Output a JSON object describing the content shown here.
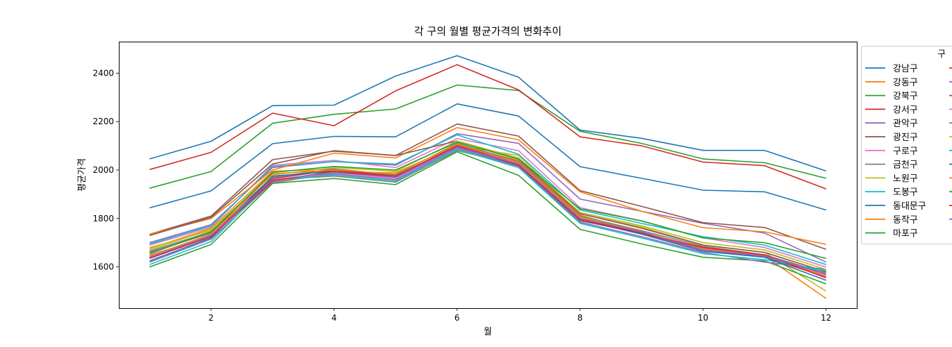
{
  "chart_data": {
    "type": "line",
    "title": "각 구의 월별 평균가격의 변화추이",
    "xlabel": "월",
    "ylabel": "평균가격",
    "xlim": [
      0.5,
      12.5
    ],
    "ylim": [
      1430,
      2530
    ],
    "xticks": [
      2,
      4,
      6,
      8,
      10,
      12
    ],
    "yticks": [
      1600,
      1800,
      2000,
      2200,
      2400
    ],
    "grid": false,
    "legend_title": "구",
    "legend_position": "outside-right",
    "x": [
      1,
      2,
      3,
      4,
      5,
      6,
      7,
      8,
      9,
      10,
      11,
      12
    ],
    "series": [
      {
        "name": "강남구",
        "color": "#1f77b4",
        "values": [
          2046,
          2119,
          2266,
          2268,
          2388,
          2472,
          2383,
          2165,
          2131,
          2081,
          2081,
          1996
        ]
      },
      {
        "name": "강동구",
        "color": "#ff7f0e",
        "values": [
          1676,
          1760,
          1995,
          2005,
          1970,
          2105,
          2040,
          1815,
          1740,
          1675,
          1645,
          1470
        ]
      },
      {
        "name": "강북구",
        "color": "#2ca02c",
        "values": [
          1925,
          1994,
          2193,
          2230,
          2252,
          2351,
          2328,
          2160,
          2110,
          2046,
          2030,
          1966
        ]
      },
      {
        "name": "강서구",
        "color": "#d62728",
        "values": [
          2002,
          2073,
          2235,
          2183,
          2327,
          2435,
          2331,
          2137,
          2100,
          2033,
          2018,
          1922
        ]
      },
      {
        "name": "관악구",
        "color": "#9467bd",
        "values": [
          1700,
          1775,
          2010,
          2035,
          2020,
          2150,
          2110,
          1880,
          1830,
          1780,
          1740,
          1620
        ]
      },
      {
        "name": "광진구",
        "color": "#8c564b",
        "values": [
          1735,
          1810,
          2043,
          2078,
          2060,
          2190,
          2140,
          1915,
          1850,
          1783,
          1763,
          1673
        ]
      },
      {
        "name": "구로구",
        "color": "#e377c2",
        "values": [
          1690,
          1765,
          2020,
          2040,
          2010,
          2130,
          2080,
          1845,
          1790,
          1720,
          1680,
          1600
        ]
      },
      {
        "name": "금천구",
        "color": "#7f7f7f",
        "values": [
          1660,
          1740,
          1960,
          1975,
          1950,
          2080,
          2020,
          1790,
          1740,
          1680,
          1650,
          1570
        ]
      },
      {
        "name": "노원구",
        "color": "#bcbd22",
        "values": [
          1680,
          1750,
          1945,
          1990,
          1990,
          2100,
          2060,
          1820,
          1765,
          1690,
          1660,
          1500
        ]
      },
      {
        "name": "도봉구",
        "color": "#17becf",
        "values": [
          1695,
          1770,
          2015,
          2035,
          2025,
          2145,
          2065,
          1835,
          1780,
          1725,
          1690,
          1610
        ]
      },
      {
        "name": "동대문구",
        "color": "#1f77b4",
        "values": [
          1844,
          1914,
          2109,
          2139,
          2137,
          2273,
          2223,
          2014,
          1966,
          1917,
          1910,
          1835
        ]
      },
      {
        "name": "동작구",
        "color": "#ff7f0e",
        "values": [
          1735,
          1800,
          2000,
          2070,
          2050,
          2175,
          2125,
          1910,
          1830,
          1762,
          1745,
          1693
        ]
      },
      {
        "name": "마포구",
        "color": "#2ca02c",
        "values": [
          1600,
          1693,
          1945,
          1965,
          1940,
          2075,
          1978,
          1755,
          1695,
          1640,
          1625,
          1530
        ]
      },
      {
        "name": "",
        "color": "#d62728",
        "values": [
          1640,
          1730,
          1965,
          2000,
          1975,
          2100,
          2030,
          1800,
          1740,
          1670,
          1640,
          1560
        ]
      },
      {
        "name": "",
        "color": "#9467bd",
        "values": [
          1620,
          1715,
          1950,
          1985,
          1960,
          2090,
          2015,
          1785,
          1725,
          1660,
          1620,
          1590
        ]
      },
      {
        "name": "",
        "color": "#8c564b",
        "values": [
          1730,
          1805,
          2025,
          2080,
          2060,
          2120,
          2045,
          1820,
          1760,
          1690,
          1660,
          1580
        ]
      },
      {
        "name": "",
        "color": "#e377c2",
        "values": [
          1650,
          1725,
          1955,
          1990,
          1965,
          2095,
          2025,
          1800,
          1745,
          1675,
          1645,
          1565
        ]
      },
      {
        "name": "",
        "color": "#7f7f7f",
        "values": [
          1665,
          1745,
          1970,
          2005,
          1980,
          2110,
          2035,
          1810,
          1750,
          1685,
          1650,
          1575
        ]
      },
      {
        "name": "",
        "color": "#bcbd22",
        "values": [
          1670,
          1755,
          1980,
          2010,
          1995,
          2120,
          2050,
          1825,
          1770,
          1700,
          1670,
          1590
        ]
      },
      {
        "name": "",
        "color": "#17becf",
        "values": [
          1610,
          1705,
          1960,
          1980,
          1955,
          2085,
          2010,
          1780,
          1720,
          1655,
          1630,
          1585
        ]
      },
      {
        "name": "",
        "color": "#1f77b4",
        "values": [
          1625,
          1720,
          1975,
          1995,
          1970,
          2095,
          2020,
          1795,
          1735,
          1665,
          1640,
          1545
        ]
      },
      {
        "name": "",
        "color": "#ff7f0e",
        "values": [
          1645,
          1735,
          1985,
          2000,
          1985,
          2105,
          2030,
          1805,
          1745,
          1675,
          1650,
          1560
        ]
      },
      {
        "name": "",
        "color": "#2ca02c",
        "values": [
          1655,
          1745,
          1990,
          2015,
          2000,
          2115,
          2045,
          1840,
          1790,
          1720,
          1700,
          1635
        ]
      },
      {
        "name": "",
        "color": "#d62728",
        "values": [
          1635,
          1725,
          1955,
          1995,
          1975,
          2100,
          2020,
          1795,
          1740,
          1680,
          1650,
          1555
        ]
      },
      {
        "name": "",
        "color": "#9467bd",
        "values": [
          1640,
          1730,
          1960,
          1990,
          1970,
          2095,
          2025,
          1800,
          1745,
          1670,
          1645,
          1570
        ]
      }
    ]
  }
}
